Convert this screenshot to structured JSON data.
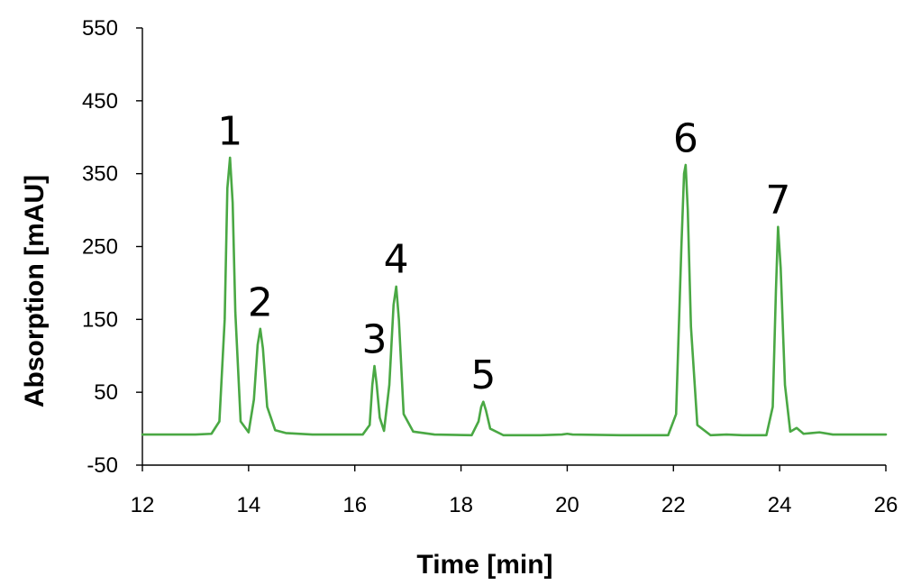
{
  "chart_data": {
    "type": "line",
    "xlabel": "Time [min]",
    "ylabel": "Absorption [mAU]",
    "xlim": [
      12,
      26
    ],
    "ylim": [
      -50,
      550
    ],
    "x_ticks": [
      12,
      14,
      16,
      18,
      20,
      22,
      24,
      26
    ],
    "y_ticks": [
      -50,
      50,
      150,
      250,
      350,
      450,
      550
    ],
    "x_tick_labels": [
      "12",
      "14",
      "16",
      "18",
      "20",
      "22",
      "24",
      "26"
    ],
    "y_tick_labels": [
      "-50",
      "50",
      "150",
      "250",
      "350",
      "450",
      "550"
    ],
    "grid": false,
    "legend": "none",
    "line_color": "#4aa844",
    "baseline": -8,
    "peaks": [
      {
        "label": "1",
        "x": 13.65,
        "y": 372,
        "label_y": 390
      },
      {
        "label": "2",
        "x": 14.22,
        "y": 137,
        "label_y": 155
      },
      {
        "label": "3",
        "x": 16.37,
        "y": 86,
        "label_y": 104
      },
      {
        "label": "4",
        "x": 16.78,
        "y": 195,
        "label_y": 214
      },
      {
        "label": "5",
        "x": 18.42,
        "y": 37,
        "label_y": 55
      },
      {
        "label": "6",
        "x": 22.23,
        "y": 362,
        "label_y": 380
      },
      {
        "label": "7",
        "x": 23.97,
        "y": 277,
        "label_y": 295
      }
    ],
    "series": [
      {
        "x": [
          12,
          12.5,
          13.0,
          13.3,
          13.45,
          13.55,
          13.6,
          13.65,
          13.7,
          13.75,
          13.85,
          14.0,
          14.1,
          14.17,
          14.22,
          14.27,
          14.35,
          14.5,
          14.7,
          15.2,
          15.8,
          16.15,
          16.28,
          16.33,
          16.37,
          16.41,
          16.47,
          16.55,
          16.65,
          16.73,
          16.78,
          16.83,
          16.92,
          17.1,
          17.5,
          18.2,
          18.33,
          18.38,
          18.42,
          18.47,
          18.55,
          18.8,
          19.5,
          19.9,
          20.0,
          20.1,
          21.0,
          21.9,
          22.05,
          22.15,
          22.2,
          22.23,
          22.27,
          22.33,
          22.45,
          22.7,
          23.0,
          23.3,
          23.75,
          23.87,
          23.93,
          23.97,
          24.02,
          24.1,
          24.2,
          24.32,
          24.45,
          24.6,
          24.75,
          25.0,
          25.5,
          26.0
        ],
        "y": [
          -8,
          -8,
          -8,
          -7,
          10,
          150,
          330,
          372,
          310,
          160,
          10,
          -5,
          40,
          115,
          137,
          110,
          30,
          -2,
          -6,
          -8,
          -8,
          -8,
          5,
          60,
          86,
          62,
          15,
          -3,
          60,
          170,
          195,
          150,
          20,
          -4,
          -8,
          -9,
          10,
          30,
          37,
          25,
          0,
          -9,
          -9,
          -8,
          -7,
          -8,
          -9,
          -9,
          20,
          250,
          350,
          362,
          300,
          140,
          5,
          -9,
          -8,
          -9,
          -9,
          30,
          190,
          277,
          220,
          60,
          -4,
          1,
          -7,
          -6,
          -5,
          -8,
          -8,
          -8
        ]
      }
    ]
  }
}
